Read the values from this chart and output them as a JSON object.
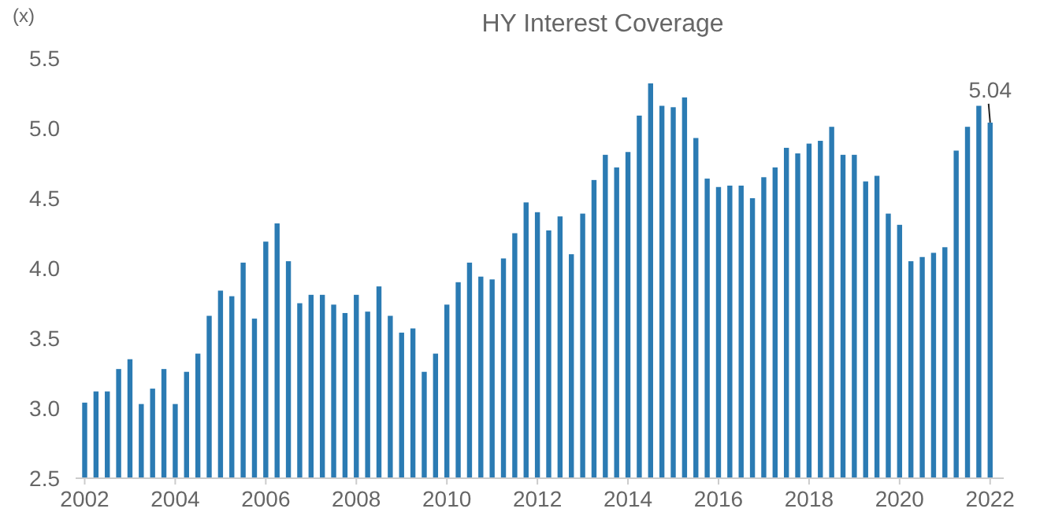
{
  "chart_data": {
    "type": "bar",
    "title": "HY Interest Coverage",
    "ylabel": "(x)",
    "color": "#2b7bb3",
    "x": [
      2002,
      2002.25,
      2002.5,
      2002.75,
      2003,
      2003.25,
      2003.5,
      2003.75,
      2004,
      2004.25,
      2004.5,
      2004.75,
      2005,
      2005.25,
      2005.5,
      2005.75,
      2006,
      2006.25,
      2006.5,
      2006.75,
      2007,
      2007.25,
      2007.5,
      2007.75,
      2008,
      2008.25,
      2008.5,
      2008.75,
      2009,
      2009.25,
      2009.5,
      2009.75,
      2010,
      2010.25,
      2010.5,
      2010.75,
      2011,
      2011.25,
      2011.5,
      2011.75,
      2012,
      2012.25,
      2012.5,
      2012.75,
      2013,
      2013.25,
      2013.5,
      2013.75,
      2014,
      2014.25,
      2014.5,
      2014.75,
      2015,
      2015.25,
      2015.5,
      2015.75,
      2016,
      2016.25,
      2016.5,
      2016.75,
      2017,
      2017.25,
      2017.5,
      2017.75,
      2018,
      2018.25,
      2018.5,
      2018.75,
      2019,
      2019.25,
      2019.5,
      2019.75,
      2020,
      2020.25,
      2020.5,
      2020.75,
      2021,
      2021.25,
      2021.5,
      2021.75,
      2022
    ],
    "values": [
      3.04,
      3.12,
      3.12,
      3.28,
      3.35,
      3.03,
      3.14,
      3.28,
      3.03,
      3.26,
      3.39,
      3.66,
      3.84,
      3.8,
      4.04,
      3.64,
      4.19,
      4.32,
      4.05,
      3.75,
      3.81,
      3.81,
      3.74,
      3.68,
      3.81,
      3.69,
      3.87,
      3.66,
      3.54,
      3.57,
      3.26,
      3.39,
      3.74,
      3.9,
      4.04,
      3.94,
      3.92,
      4.07,
      4.25,
      4.47,
      4.4,
      4.27,
      4.37,
      4.1,
      4.39,
      4.63,
      4.81,
      4.72,
      4.83,
      5.09,
      5.32,
      5.16,
      5.15,
      5.22,
      4.93,
      4.64,
      4.58,
      4.59,
      4.59,
      4.5,
      4.65,
      4.72,
      4.86,
      4.82,
      4.89,
      4.91,
      5.01,
      4.81,
      4.81,
      4.62,
      4.66,
      4.39,
      4.31,
      4.05,
      4.08,
      4.11,
      4.15,
      4.84,
      5.01,
      5.16,
      5.04
    ],
    "xlim": [
      2001.8,
      2022.3
    ],
    "xticks": [
      2002,
      2004,
      2006,
      2008,
      2010,
      2012,
      2014,
      2016,
      2018,
      2020,
      2022
    ],
    "ylim": [
      2.5,
      5.5
    ],
    "yticks": [
      {
        "value": 2.5,
        "label": "2.5"
      },
      {
        "value": 3,
        "label": "3.0"
      },
      {
        "value": 3.5,
        "label": "3.5"
      },
      {
        "value": 4,
        "label": "4.0"
      },
      {
        "value": 4.5,
        "label": "4.5"
      },
      {
        "value": 5,
        "label": "5.0"
      },
      {
        "value": 5.5,
        "label": "5.5"
      }
    ],
    "annotations": [
      {
        "text": "5.04",
        "x": 2022,
        "y": 5.04
      }
    ]
  }
}
